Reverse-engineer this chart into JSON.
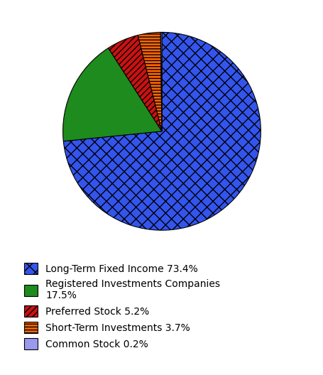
{
  "slices": [
    {
      "label": "Long-Term Fixed Income 73.4%",
      "value": 73.4,
      "color": "#3355EE",
      "hatch": "xx",
      "hatch_color": "#000000"
    },
    {
      "label": "Registered Investments Companies\n17.5%",
      "value": 17.5,
      "color": "#1E8B1E",
      "hatch": "WWWW",
      "hatch_color": "#000000"
    },
    {
      "label": "Preferred Stock 5.2%",
      "value": 5.2,
      "color": "#CC1111",
      "hatch": "////",
      "hatch_color": "#000000"
    },
    {
      "label": "Short-Term Investments 3.7%",
      "value": 3.7,
      "color": "#FF6600",
      "hatch": "----",
      "hatch_color": "#000000"
    },
    {
      "label": "Common Stock 0.2%",
      "value": 0.2,
      "color": "#9999EE",
      "hatch": "",
      "hatch_color": "#000000"
    }
  ],
  "background_color": "#ffffff",
  "startangle": 90,
  "figsize": [
    4.56,
    5.28
  ],
  "dpi": 100
}
